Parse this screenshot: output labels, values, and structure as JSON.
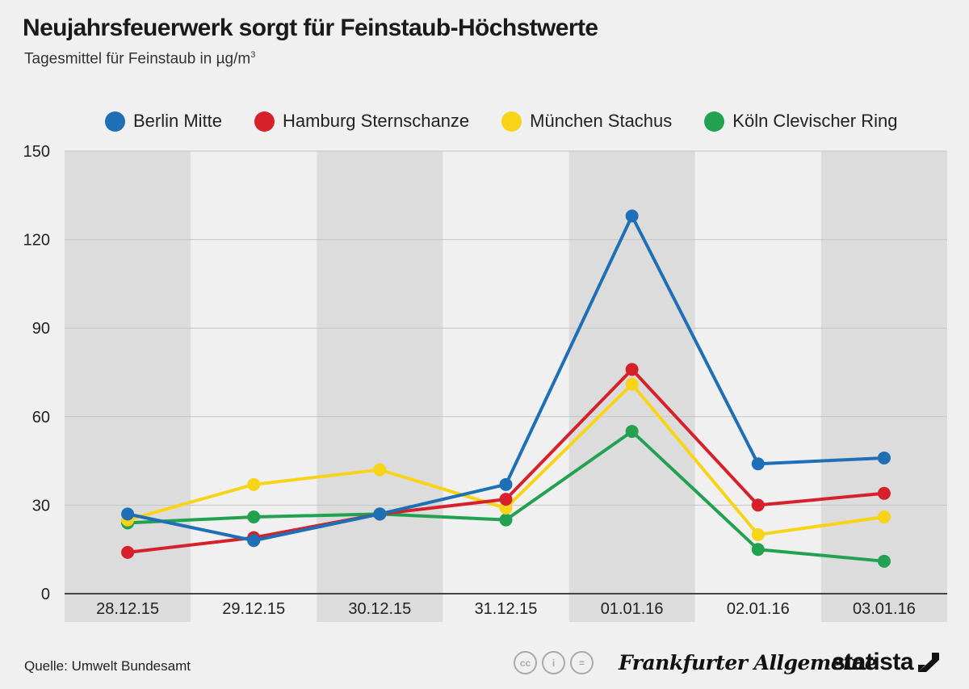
{
  "header": {
    "title": "Neujahrsfeuerwerk sorgt für Feinstaub-Höchstwerte",
    "subtitle": "Tagesmittel für Feinstaub in µg/m",
    "subtitle_sup": "3"
  },
  "footer": {
    "source": "Quelle: Umwelt Bundesamt",
    "cc_icons": [
      "cc",
      "i",
      "="
    ],
    "publisher_logo": "Frankfurter Allgemeine",
    "brand_logo": "statista"
  },
  "chart_data": {
    "type": "line",
    "categories": [
      "28.12.15",
      "29.12.15",
      "30.12.15",
      "31.12.15",
      "01.01.16",
      "02.01.16",
      "03.01.16"
    ],
    "ylim": [
      0,
      150
    ],
    "yticks": [
      0,
      30,
      60,
      90,
      120,
      150
    ],
    "grid": "alternating column bands",
    "legend_position": "top",
    "series": [
      {
        "name": "Berlin Mitte",
        "color": "#1f6fb6",
        "values": [
          27,
          18,
          27,
          37,
          128,
          44,
          46
        ]
      },
      {
        "name": "Hamburg Sternschanze",
        "color": "#d6202a",
        "values": [
          14,
          19,
          27,
          32,
          76,
          30,
          34
        ]
      },
      {
        "name": "München Stachus",
        "color": "#f7d417",
        "values": [
          25,
          37,
          42,
          29,
          71,
          20,
          26
        ]
      },
      {
        "name": "Köln Clevischer Ring",
        "color": "#22a150",
        "values": [
          24,
          26,
          27,
          25,
          55,
          15,
          11
        ]
      }
    ],
    "draw_order": [
      3,
      2,
      1,
      0
    ]
  }
}
